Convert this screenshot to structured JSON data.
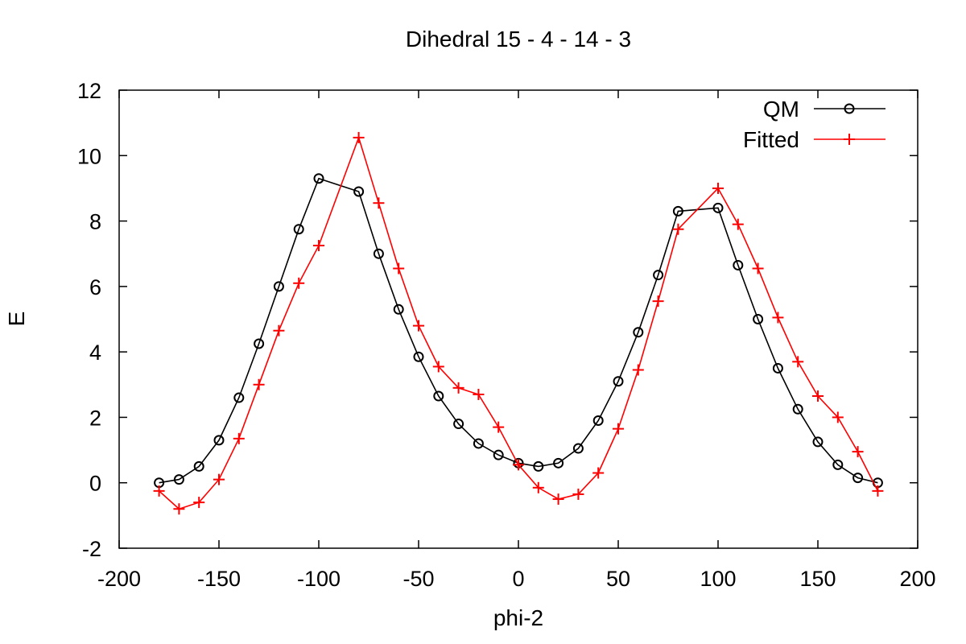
{
  "chart_data": {
    "type": "line",
    "title": "Dihedral  15 - 4 - 14 - 3",
    "xlabel": "phi-2",
    "ylabel": "E",
    "xlim": [
      -200,
      200
    ],
    "ylim": [
      -2,
      12
    ],
    "xticks": [
      -200,
      -150,
      -100,
      -50,
      0,
      50,
      100,
      150,
      200
    ],
    "yticks": [
      -2,
      0,
      2,
      4,
      6,
      8,
      10,
      12
    ],
    "grid": false,
    "legend_position": "top-right",
    "x": [
      -180,
      -170,
      -160,
      -150,
      -140,
      -130,
      -120,
      -110,
      -100,
      -80,
      -70,
      -60,
      -50,
      -40,
      -30,
      -20,
      -10,
      0,
      10,
      20,
      30,
      40,
      50,
      60,
      70,
      80,
      100,
      110,
      120,
      130,
      140,
      150,
      160,
      170,
      180
    ],
    "series": [
      {
        "name": "QM",
        "color": "#000000",
        "marker": "circle",
        "values": [
          0.0,
          0.1,
          0.5,
          1.3,
          2.6,
          4.25,
          6.0,
          7.75,
          9.3,
          8.9,
          7.0,
          5.3,
          3.85,
          2.65,
          1.8,
          1.2,
          0.85,
          0.6,
          0.5,
          0.6,
          1.05,
          1.9,
          3.1,
          4.6,
          6.35,
          8.3,
          8.4,
          6.65,
          5.0,
          3.5,
          2.25,
          1.25,
          0.55,
          0.15,
          0.0
        ]
      },
      {
        "name": "Fitted",
        "color": "#ff0000",
        "marker": "plus",
        "values": [
          -0.25,
          -0.8,
          -0.6,
          0.1,
          1.35,
          3.0,
          4.65,
          6.1,
          7.25,
          10.55,
          8.55,
          6.55,
          4.8,
          3.55,
          2.9,
          2.7,
          1.7,
          0.55,
          -0.15,
          -0.5,
          -0.35,
          0.3,
          1.65,
          3.45,
          5.55,
          7.75,
          9.0,
          7.9,
          6.55,
          5.05,
          3.7,
          2.65,
          2.0,
          0.95,
          -0.25
        ]
      }
    ]
  }
}
